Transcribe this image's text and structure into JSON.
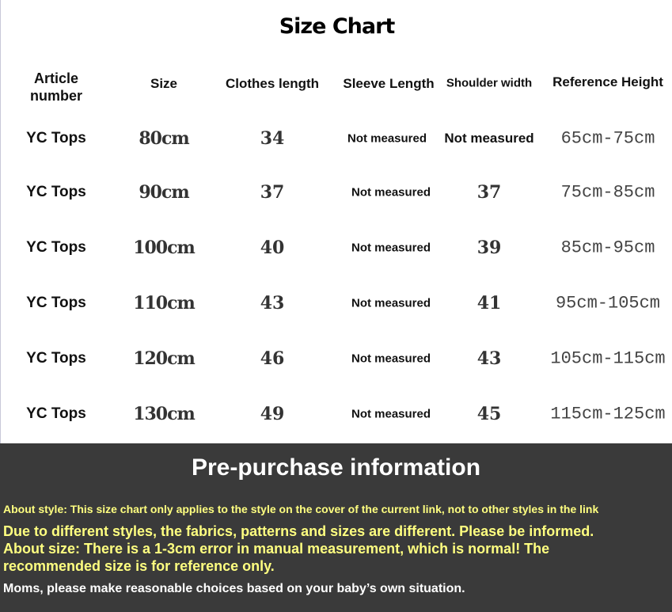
{
  "title": "Size Chart",
  "headers": [
    "Article\nnumber",
    "Size",
    "Clothes length",
    "Sleeve Length",
    "Shoulder width",
    "Reference Height"
  ],
  "rows": [
    {
      "article": "YC Tops",
      "size": "80cm",
      "clothes_length": "34",
      "sleeve_length": "Not measured",
      "shoulder_width": "Not measured",
      "reference_height": "65cm-75cm"
    },
    {
      "article": "YC Tops",
      "size": "90cm",
      "clothes_length": "37",
      "sleeve_length": "Not measured",
      "shoulder_width": "37",
      "reference_height": "75cm-85cm"
    },
    {
      "article": "YC Tops",
      "size": "100cm",
      "clothes_length": "40",
      "sleeve_length": "Not measured",
      "shoulder_width": "39",
      "reference_height": "85cm-95cm"
    },
    {
      "article": "YC Tops",
      "size": "110cm",
      "clothes_length": "43",
      "sleeve_length": "Not measured",
      "shoulder_width": "41",
      "reference_height": "95cm-105cm"
    },
    {
      "article": "YC Tops",
      "size": "120cm",
      "clothes_length": "46",
      "sleeve_length": "Not measured",
      "shoulder_width": "43",
      "reference_height": "105cm-115cm"
    },
    {
      "article": "YC Tops",
      "size": "130cm",
      "clothes_length": "49",
      "sleeve_length": "Not measured",
      "shoulder_width": "45",
      "reference_height": "115cm-125cm"
    }
  ],
  "info": {
    "title": "Pre-purchase information",
    "style_note": "About style: This size chart only applies to the style on the cover of the current link, not to other styles in the link",
    "fabric_note": "Due to different styles, the fabrics, patterns and sizes are different. Please be informed.",
    "size_note_1": "About size: There is a 1-3cm error in manual measurement, which is normal! The",
    "size_note_2": "recommended size is for reference only.",
    "moms_note": "Moms, please make reasonable choices based on your baby’s own situation."
  },
  "colors": {
    "info_bg": "#3a3a3a",
    "highlight_text": "#ffff80"
  }
}
